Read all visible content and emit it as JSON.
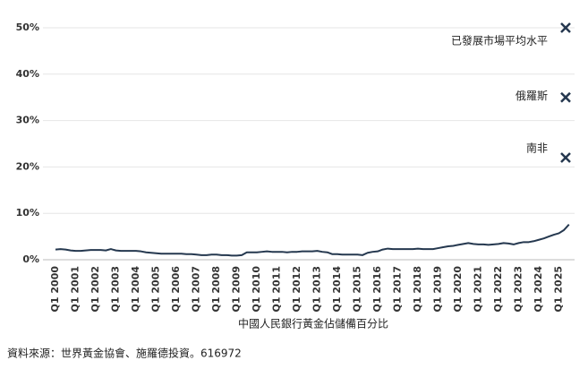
{
  "chart_data": {
    "type": "line",
    "x_title": "中國人民銀行黃金佔儲備百分比",
    "source": "資料來源：世界黃金協會、施羅德投資。616972",
    "categories": [
      "Q1 2000",
      null,
      null,
      null,
      "Q1 2001",
      null,
      null,
      null,
      "Q1 2002",
      null,
      null,
      null,
      "Q1 2003",
      null,
      null,
      null,
      "Q1 2004",
      null,
      null,
      null,
      "Q1 2005",
      null,
      null,
      null,
      "Q1 2006",
      null,
      null,
      null,
      "Q1 2007",
      null,
      null,
      null,
      "Q1 2008",
      null,
      null,
      null,
      "Q1 2009",
      null,
      null,
      null,
      "Q1 2010",
      null,
      null,
      null,
      "Q1 2011",
      null,
      null,
      null,
      "Q1 2012",
      null,
      null,
      null,
      "Q1 2013",
      null,
      null,
      null,
      "Q1 2014",
      null,
      null,
      null,
      "Q1 2015",
      null,
      null,
      null,
      "Q1 2016",
      null,
      null,
      null,
      "Q1 2017",
      null,
      null,
      null,
      "Q1 2018",
      null,
      null,
      null,
      "Q1 2019",
      null,
      null,
      null,
      "Q1 2020",
      null,
      null,
      null,
      "Q1 2021",
      null,
      null,
      null,
      "Q1 2022",
      null,
      null,
      null,
      "Q1 2023",
      null,
      null,
      null,
      "Q1 2024",
      null,
      null,
      null,
      "Q1 2025",
      null,
      null
    ],
    "values": [
      2.2,
      2.3,
      2.2,
      2.0,
      1.9,
      1.9,
      2.0,
      2.1,
      2.1,
      2.1,
      2.0,
      2.3,
      2.0,
      1.9,
      1.9,
      1.9,
      1.9,
      1.8,
      1.6,
      1.5,
      1.4,
      1.3,
      1.3,
      1.3,
      1.3,
      1.3,
      1.2,
      1.2,
      1.1,
      1.0,
      1.0,
      1.1,
      1.1,
      1.0,
      1.0,
      0.9,
      0.9,
      1.0,
      1.6,
      1.6,
      1.6,
      1.7,
      1.8,
      1.7,
      1.7,
      1.7,
      1.6,
      1.7,
      1.7,
      1.8,
      1.8,
      1.8,
      1.9,
      1.7,
      1.6,
      1.2,
      1.2,
      1.1,
      1.1,
      1.1,
      1.1,
      1.0,
      1.5,
      1.7,
      1.8,
      2.2,
      2.4,
      2.3,
      2.3,
      2.3,
      2.3,
      2.3,
      2.4,
      2.3,
      2.3,
      2.3,
      2.5,
      2.7,
      2.9,
      3.0,
      3.2,
      3.4,
      3.6,
      3.4,
      3.3,
      3.3,
      3.2,
      3.3,
      3.4,
      3.6,
      3.5,
      3.3,
      3.6,
      3.8,
      3.8,
      4.0,
      4.3,
      4.6,
      5.0,
      5.4,
      5.7,
      6.4,
      7.6
    ],
    "color": "#25384f",
    "markers": [
      {
        "label": "已發展市場平均水平",
        "value": 50
      },
      {
        "label": "俄羅斯",
        "value": 35
      },
      {
        "label": "南非",
        "value": 22
      }
    ],
    "ylim": [
      0,
      50
    ],
    "yticks": [
      {
        "value": 0,
        "label": "0%"
      },
      {
        "value": 10,
        "label": "10%"
      },
      {
        "value": 20,
        "label": "20%"
      },
      {
        "value": 30,
        "label": "30%"
      },
      {
        "value": 40,
        "label": "40%"
      },
      {
        "value": 50,
        "label": "50%"
      }
    ],
    "grid": true
  }
}
